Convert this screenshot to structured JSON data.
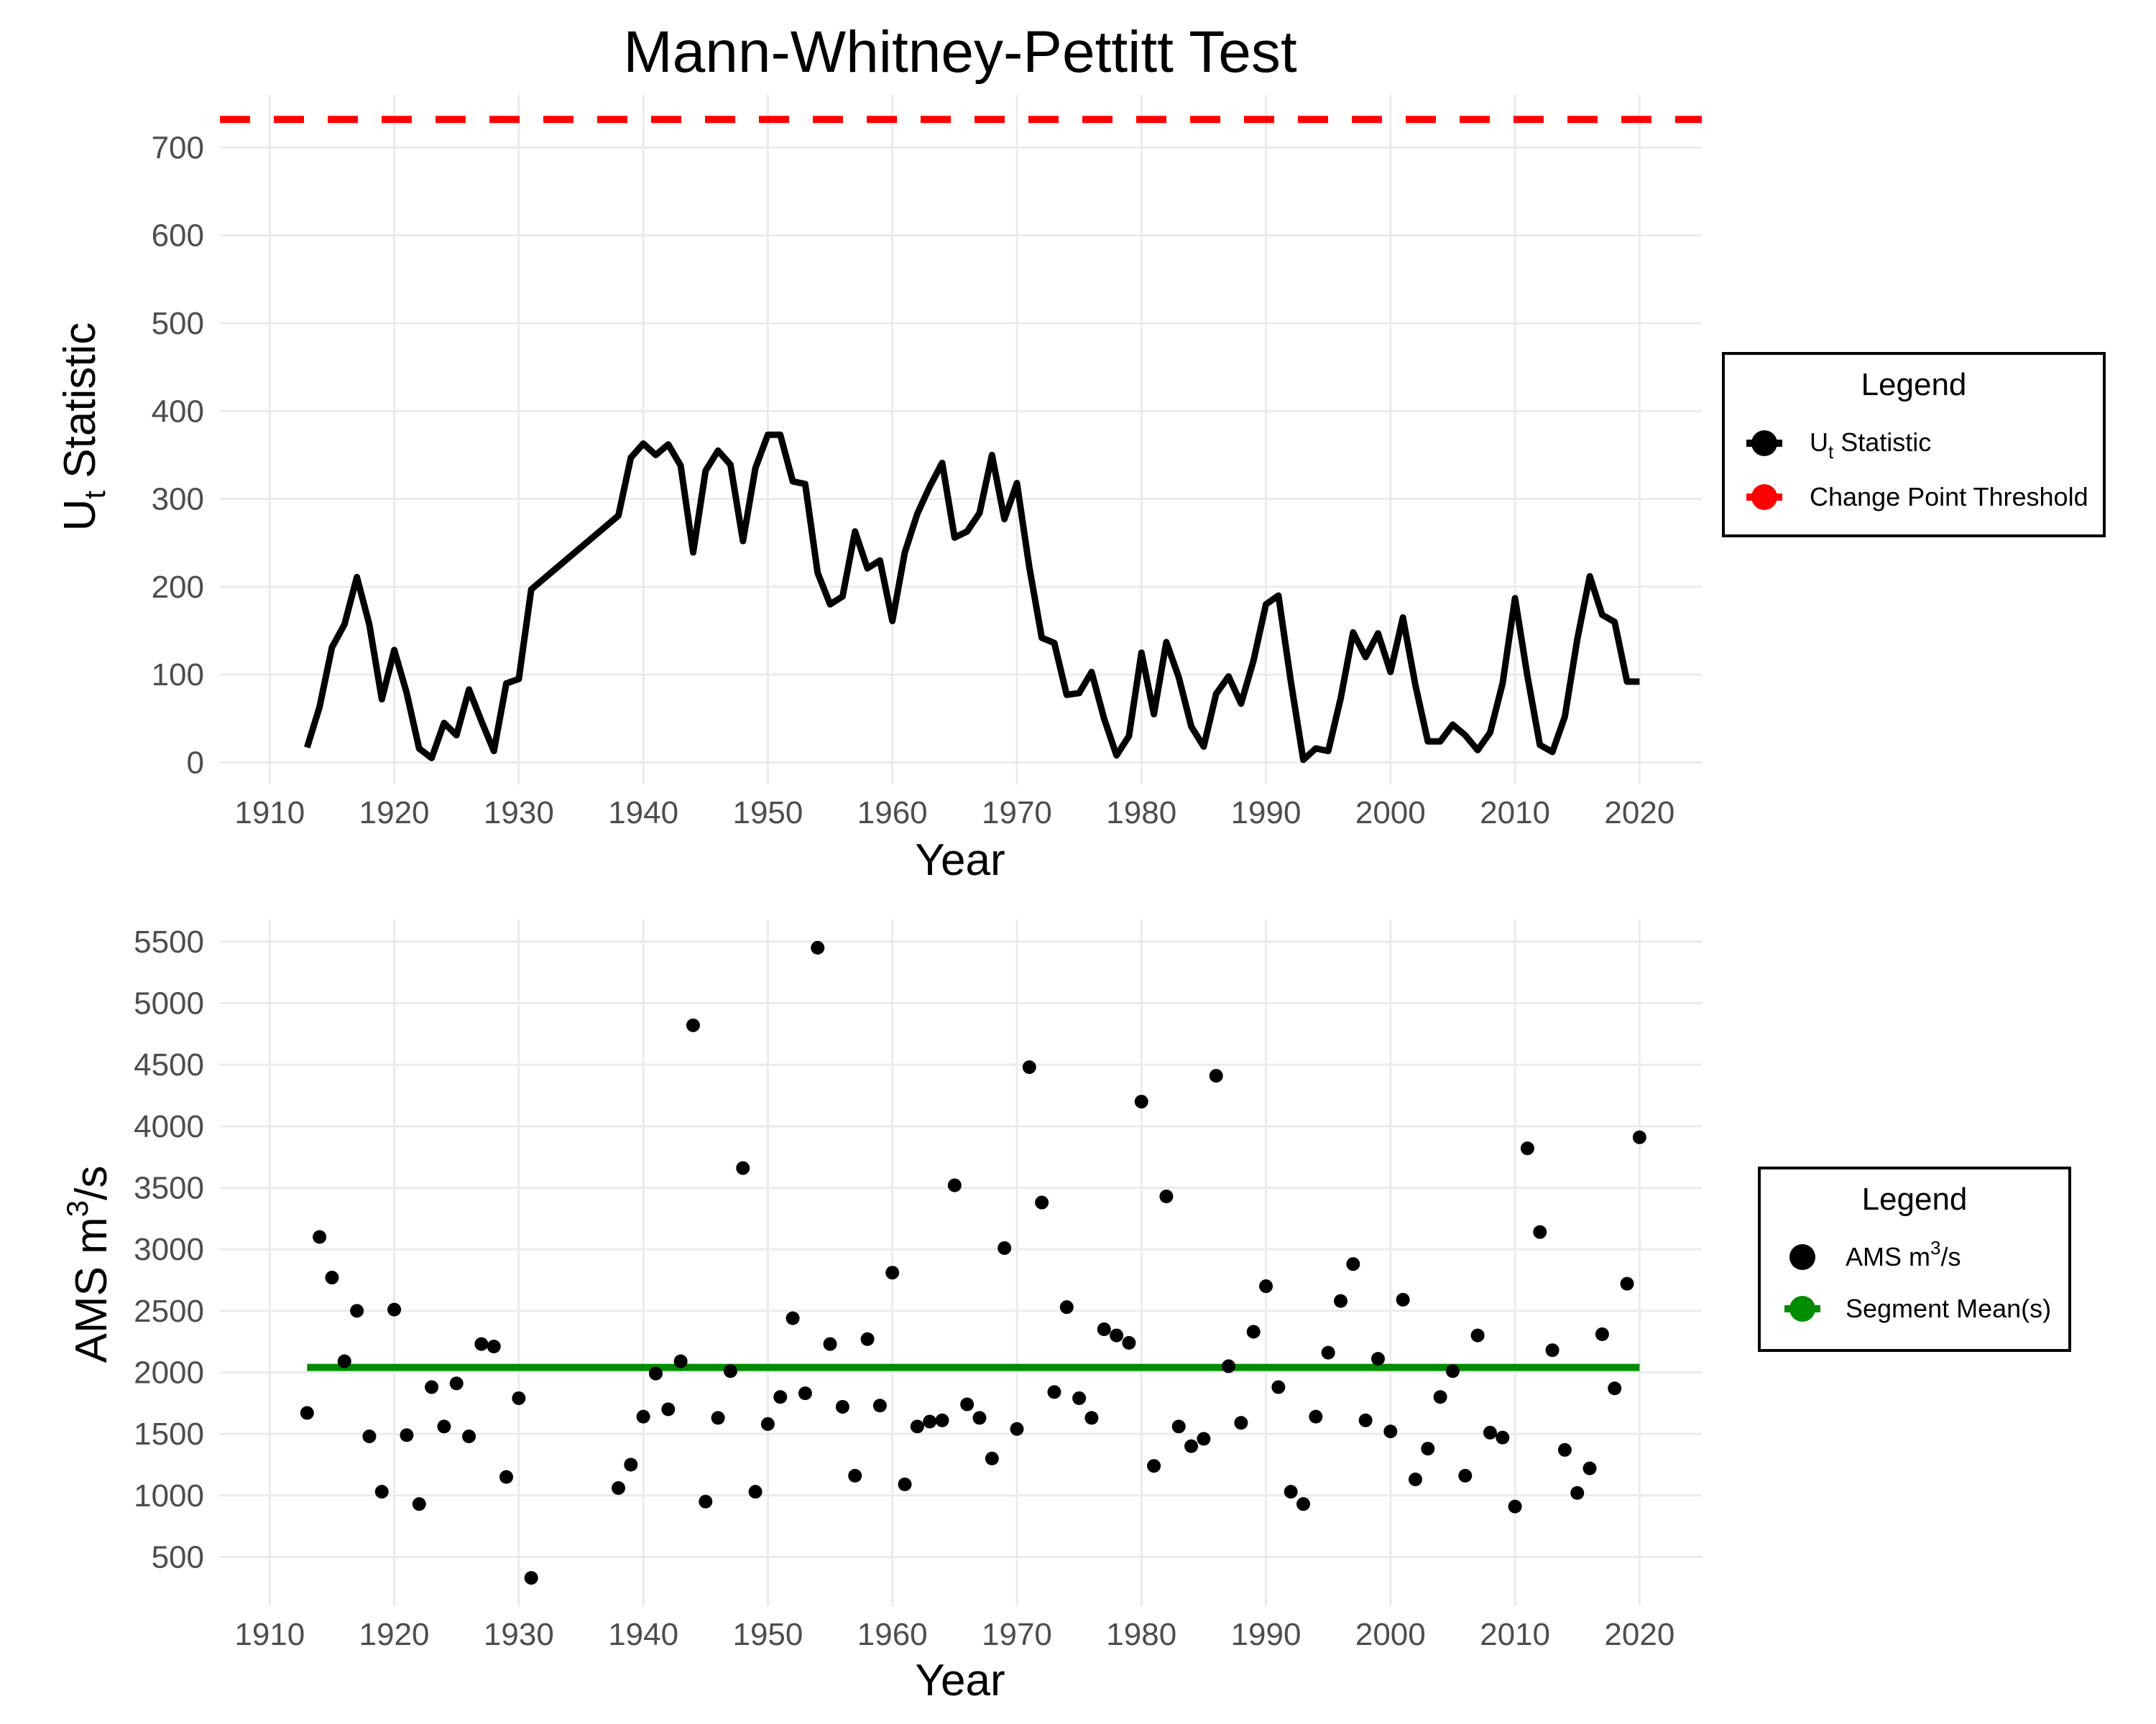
{
  "title": "Mann-Whitney-Pettitt Test",
  "chart_data": [
    {
      "type": "line",
      "xlabel": "Year",
      "ylabel_main": "U",
      "ylabel_sub": "t",
      "ylabel_rest": " Statistic",
      "xlim": [
        1906,
        2025
      ],
      "ylim": [
        -25,
        760
      ],
      "xticks": [
        "1910",
        "1920",
        "1930",
        "1940",
        "1950",
        "1960",
        "1970",
        "1980",
        "1990",
        "2000",
        "2010",
        "2020"
      ],
      "yticks": [
        "0",
        "100",
        "200",
        "300",
        "400",
        "500",
        "600",
        "700"
      ],
      "threshold": 732,
      "legend": {
        "title": "Legend",
        "items": [
          {
            "main": "U",
            "sub": "t",
            "rest": " Statistic",
            "color": "#000000"
          },
          {
            "main": "Change Point Threshold",
            "sub": "",
            "rest": "",
            "color": "#ff0000"
          }
        ]
      },
      "series": [
        {
          "color": "#000000",
          "x": [
            1913,
            1914,
            1915,
            1916,
            1917,
            1918,
            1919,
            1920,
            1921,
            1922,
            1923,
            1924,
            1925,
            1926,
            1927,
            1928,
            1929,
            1930,
            1931,
            1938,
            1939,
            1940,
            1941,
            1942,
            1943,
            1944,
            1945,
            1946,
            1947,
            1948,
            1949,
            1950,
            1951,
            1952,
            1953,
            1954,
            1955,
            1956,
            1957,
            1958,
            1959,
            1960,
            1961,
            1962,
            1963,
            1964,
            1965,
            1966,
            1967,
            1968,
            1969,
            1970,
            1971,
            1972,
            1973,
            1974,
            1975,
            1976,
            1977,
            1978,
            1979,
            1980,
            1981,
            1982,
            1983,
            1984,
            1985,
            1986,
            1987,
            1988,
            1989,
            1990,
            1991,
            1992,
            1993,
            1994,
            1995,
            1996,
            1997,
            1998,
            1999,
            2000,
            2001,
            2002,
            2003,
            2004,
            2005,
            2006,
            2007,
            2008,
            2009,
            2010,
            2011,
            2012,
            2013,
            2014,
            2015,
            2016,
            2017,
            2018,
            2019,
            2020
          ],
          "y": [
            17,
            63,
            131,
            157,
            211,
            157,
            72,
            128,
            79,
            16,
            5,
            45,
            31,
            83,
            47,
            13,
            90,
            95,
            197,
            281,
            347,
            363,
            350,
            362,
            338,
            239,
            332,
            355,
            339,
            252,
            335,
            373,
            373,
            320,
            317,
            216,
            180,
            189,
            263,
            221,
            230,
            161,
            239,
            283,
            314,
            341,
            256,
            263,
            284,
            350,
            277,
            318,
            222,
            142,
            136,
            77,
            79,
            103,
            50,
            8,
            30,
            125,
            55,
            137,
            97,
            41,
            18,
            78,
            98,
            67,
            116,
            180,
            190,
            92,
            3,
            16,
            13,
            73,
            148,
            120,
            147,
            103,
            165,
            88,
            24,
            24,
            43,
            31,
            14,
            34,
            90,
            187,
            98,
            20,
            12,
            52,
            140,
            212,
            168,
            160,
            92,
            92
          ]
        }
      ]
    },
    {
      "type": "scatter",
      "xlabel": "Year",
      "ylabel_main": "AMS m",
      "ylabel_sup": "3",
      "ylabel_rest": "/s",
      "xlim": [
        1906,
        2025
      ],
      "ylim": [
        100,
        5680
      ],
      "xticks": [
        "1910",
        "1920",
        "1930",
        "1940",
        "1950",
        "1960",
        "1970",
        "1980",
        "1990",
        "2000",
        "2010",
        "2020"
      ],
      "yticks": [
        "500",
        "1000",
        "1500",
        "2000",
        "2500",
        "3000",
        "3500",
        "4000",
        "4500",
        "5000",
        "5500"
      ],
      "segment_mean": {
        "x_start": 1913,
        "x_end": 2020,
        "value": 2040,
        "color": "#008b00"
      },
      "legend": {
        "title": "Legend",
        "items": [
          {
            "main": "AMS m",
            "sup": "3",
            "rest": "/s",
            "color": "#000000"
          },
          {
            "main": "Segment Mean(s)",
            "sup": "",
            "rest": "",
            "color": "#008b00"
          }
        ]
      },
      "series": [
        {
          "color": "#000000",
          "x": [
            1913,
            1914,
            1915,
            1916,
            1917,
            1918,
            1919,
            1920,
            1921,
            1922,
            1923,
            1924,
            1925,
            1926,
            1927,
            1928,
            1929,
            1930,
            1931,
            1938,
            1939,
            1940,
            1941,
            1942,
            1943,
            1944,
            1945,
            1946,
            1947,
            1948,
            1949,
            1950,
            1951,
            1952,
            1953,
            1954,
            1955,
            1956,
            1957,
            1958,
            1959,
            1960,
            1961,
            1962,
            1963,
            1964,
            1965,
            1966,
            1967,
            1968,
            1969,
            1970,
            1971,
            1972,
            1973,
            1974,
            1975,
            1976,
            1977,
            1978,
            1979,
            1980,
            1981,
            1982,
            1983,
            1984,
            1985,
            1986,
            1987,
            1988,
            1989,
            1990,
            1991,
            1992,
            1993,
            1994,
            1995,
            1996,
            1997,
            1998,
            1999,
            2000,
            2001,
            2002,
            2003,
            2004,
            2005,
            2006,
            2007,
            2008,
            2009,
            2010,
            2011,
            2012,
            2013,
            2014,
            2015,
            2016,
            2017,
            2018,
            2019,
            2020
          ],
          "y": [
            1670,
            3100,
            2770,
            2090,
            2500,
            1480,
            1030,
            2510,
            1490,
            930,
            1880,
            1560,
            1910,
            1480,
            2230,
            2210,
            1150,
            1790,
            330,
            1060,
            1250,
            1640,
            1990,
            1700,
            2090,
            4820,
            950,
            1630,
            2010,
            3660,
            1030,
            1580,
            1800,
            2440,
            1830,
            5450,
            2230,
            1720,
            1160,
            2270,
            1730,
            2810,
            1090,
            1560,
            1600,
            1610,
            3520,
            1740,
            1630,
            1300,
            3010,
            1540,
            4480,
            3380,
            1840,
            2530,
            1790,
            1630,
            2350,
            2300,
            2240,
            4200,
            1240,
            3430,
            1560,
            1400,
            1460,
            4410,
            2050,
            1590,
            2330,
            2700,
            1880,
            1030,
            930,
            1640,
            2160,
            2580,
            2880,
            1610,
            2110,
            1520,
            2590,
            1130,
            1380,
            1800,
            2010,
            1160,
            2300,
            1510,
            1470,
            910,
            3820,
            3140,
            2180,
            1370,
            1020,
            1220,
            2310,
            1870,
            2720,
            3910
          ]
        }
      ]
    }
  ]
}
